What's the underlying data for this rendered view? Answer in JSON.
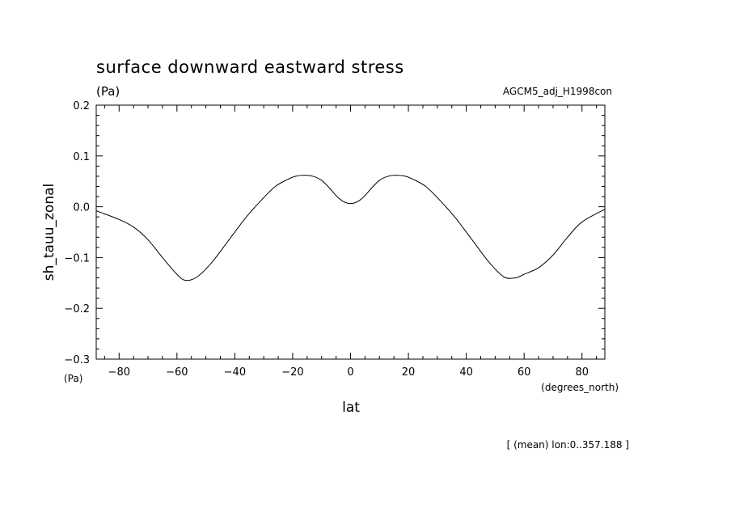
{
  "chart_data": {
    "type": "line",
    "title": "surface downward eastward stress",
    "units_top": "(Pa)",
    "run_label": "AGCM5_adj_H1998con",
    "xlabel": "lat",
    "x_units": "(degrees_north)",
    "ylabel": "sh_tauu_zonal",
    "y_units_bottom": "(Pa)",
    "footnote": "[ (mean) lon:0..357.188 ]",
    "xlim": [
      -87.9,
      87.9
    ],
    "ylim": [
      -0.3,
      0.2
    ],
    "x_ticks": [
      -80,
      -60,
      -40,
      -20,
      0,
      20,
      40,
      60,
      80
    ],
    "x_tick_labels": [
      "−80",
      "−60",
      "−40",
      "−20",
      "0",
      "20",
      "40",
      "60",
      "80"
    ],
    "y_ticks": [
      0.2,
      0.1,
      0.0,
      -0.1,
      -0.2,
      -0.3
    ],
    "y_tick_labels": [
      "0.2",
      "0.1",
      "0.0",
      "−0.1",
      "−0.2",
      "−0.3"
    ],
    "grid": false,
    "series": [
      {
        "x": [
          -87.9,
          -80,
          -75,
          -70,
          -65,
          -60,
          -57,
          -53,
          -48,
          -42,
          -36,
          -30,
          -26,
          -22,
          -19,
          -16,
          -13,
          -10,
          -7,
          -5,
          -3,
          -1,
          1,
          3,
          5,
          7,
          10,
          13,
          16,
          19,
          22,
          26,
          30,
          36,
          42,
          48,
          53,
          57,
          60,
          65,
          70,
          75,
          80,
          87.9
        ],
        "y": [
          -0.008,
          -0.025,
          -0.04,
          -0.065,
          -0.1,
          -0.133,
          -0.145,
          -0.138,
          -0.11,
          -0.065,
          -0.02,
          0.018,
          0.04,
          0.053,
          0.06,
          0.062,
          0.06,
          0.052,
          0.035,
          0.022,
          0.012,
          0.007,
          0.007,
          0.012,
          0.022,
          0.035,
          0.052,
          0.06,
          0.062,
          0.06,
          0.053,
          0.04,
          0.018,
          -0.02,
          -0.065,
          -0.11,
          -0.138,
          -0.14,
          -0.133,
          -0.12,
          -0.095,
          -0.06,
          -0.03,
          -0.005
        ]
      }
    ]
  }
}
